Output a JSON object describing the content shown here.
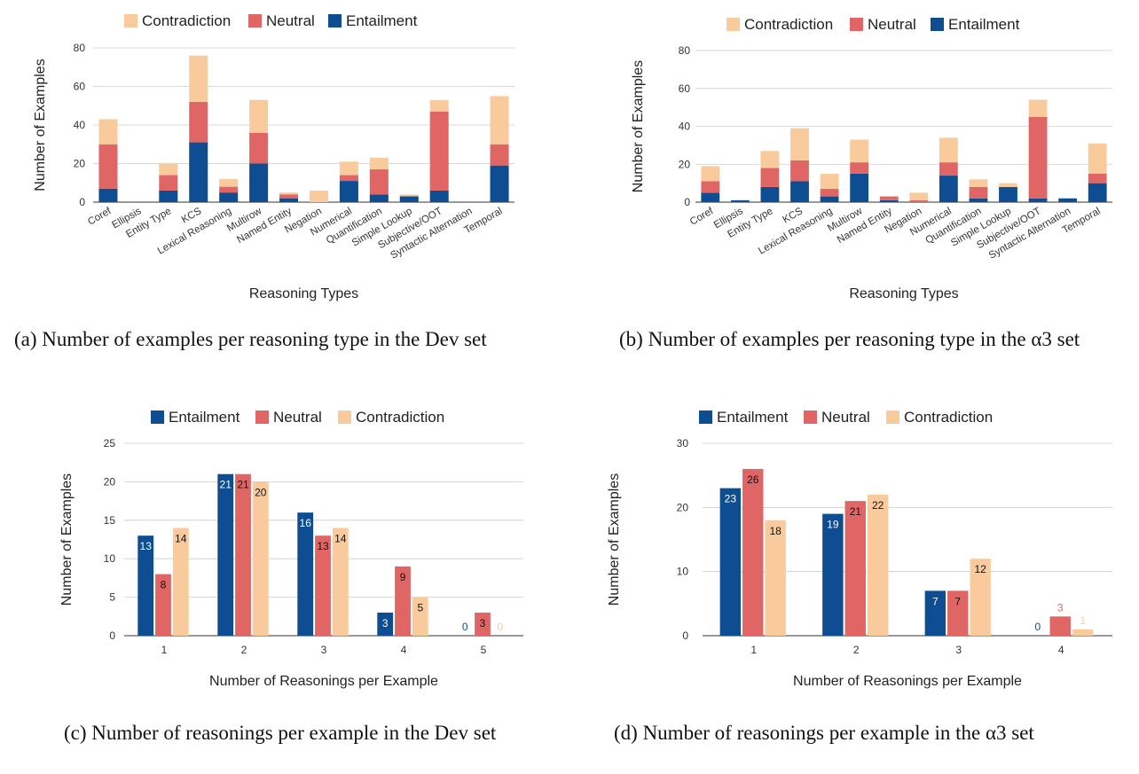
{
  "colors": {
    "entailment": "#0e4d92",
    "neutral": "#e06666",
    "contradiction": "#f9cb9c"
  },
  "captions": {
    "a": "(a) Number of examples per reasoning type in the Dev set",
    "b": "(b) Number of examples per reasoning type in the α3  set",
    "c": "(c) Number of reasonings per example in the Dev set",
    "d": "(d) Number of reasonings per example in the α3  set"
  },
  "chart_data": [
    {
      "id": "a",
      "type": "bar",
      "stacked": true,
      "legend": [
        "Contradiction",
        "Neutral",
        "Entailment"
      ],
      "legend_position": "top",
      "xlabel": "Reasoning Types",
      "ylabel": "Number of Examples",
      "ylim": [
        0,
        80
      ],
      "yticks": [
        0,
        20,
        40,
        60,
        80
      ],
      "categories": [
        "Coref",
        "Ellipsis",
        "Entity Type",
        "KCS",
        "Lexical Reasoning",
        "Multirow",
        "Named Entity",
        "Negation",
        "Numerical",
        "Quantification",
        "Simple Lookup",
        "Subjective/OOT",
        "Syntactic Alternation",
        "Temporal"
      ],
      "series": [
        {
          "name": "Entailment",
          "values": [
            7,
            0,
            6,
            31,
            5,
            20,
            2,
            0,
            11,
            4,
            3,
            6,
            0,
            19
          ]
        },
        {
          "name": "Neutral",
          "values": [
            23,
            0,
            8,
            21,
            3,
            16,
            2,
            0,
            3,
            13,
            0,
            41,
            0,
            11
          ]
        },
        {
          "name": "Contradiction",
          "values": [
            13,
            0,
            6,
            24,
            4,
            17,
            1,
            6,
            7,
            6,
            1,
            6,
            0,
            25
          ]
        }
      ],
      "grid": true
    },
    {
      "id": "b",
      "type": "bar",
      "stacked": true,
      "legend": [
        "Contradiction",
        "Neutral",
        "Entailment"
      ],
      "legend_position": "top",
      "xlabel": "Reasoning Types",
      "ylabel": "Number of Examples",
      "ylim": [
        0,
        80
      ],
      "yticks": [
        0,
        20,
        40,
        60,
        80
      ],
      "categories": [
        "Coref",
        "Ellipsis",
        "Entity Type",
        "KCS",
        "Lexical Reasoning",
        "Multirow",
        "Named Entity",
        "Negation",
        "Numerical",
        "Quantification",
        "Simple Lookup",
        "Subjective/OOT",
        "Syntactic Alternation",
        "Temporal"
      ],
      "series": [
        {
          "name": "Entailment",
          "values": [
            5,
            1,
            8,
            11,
            3,
            15,
            1,
            0,
            14,
            2,
            8,
            2,
            2,
            10
          ]
        },
        {
          "name": "Neutral",
          "values": [
            6,
            0,
            10,
            11,
            4,
            6,
            2,
            1,
            7,
            6,
            0,
            43,
            0,
            5
          ]
        },
        {
          "name": "Contradiction",
          "values": [
            8,
            0,
            9,
            17,
            8,
            12,
            0,
            4,
            13,
            4,
            2,
            9,
            0,
            16
          ]
        }
      ],
      "grid": true
    },
    {
      "id": "c",
      "type": "bar",
      "stacked": false,
      "legend": [
        "Entailment",
        "Neutral",
        "Contradiction"
      ],
      "legend_position": "top",
      "xlabel": "Number of Reasonings per Example",
      "ylabel": "Number of Examples",
      "ylim": [
        0,
        25
      ],
      "yticks": [
        0,
        5,
        10,
        15,
        20,
        25
      ],
      "categories": [
        "1",
        "2",
        "3",
        "4",
        "5"
      ],
      "series": [
        {
          "name": "Entailment",
          "values": [
            13,
            21,
            16,
            3,
            0
          ]
        },
        {
          "name": "Neutral",
          "values": [
            8,
            21,
            13,
            9,
            3
          ]
        },
        {
          "name": "Contradiction",
          "values": [
            14,
            20,
            14,
            5,
            0
          ]
        }
      ],
      "data_labels": true,
      "grid": true
    },
    {
      "id": "d",
      "type": "bar",
      "stacked": false,
      "legend": [
        "Entailment",
        "Neutral",
        "Contradiction"
      ],
      "legend_position": "top",
      "xlabel": "Number of Reasonings per Example",
      "ylabel": "Number of Examples",
      "ylim": [
        0,
        30
      ],
      "yticks": [
        0,
        10,
        20,
        30
      ],
      "categories": [
        "1",
        "2",
        "3",
        "4"
      ],
      "series": [
        {
          "name": "Entailment",
          "values": [
            23,
            19,
            7,
            0
          ]
        },
        {
          "name": "Neutral",
          "values": [
            26,
            21,
            7,
            3
          ]
        },
        {
          "name": "Contradiction",
          "values": [
            18,
            22,
            12,
            1
          ]
        }
      ],
      "data_labels": true,
      "grid": true
    }
  ]
}
